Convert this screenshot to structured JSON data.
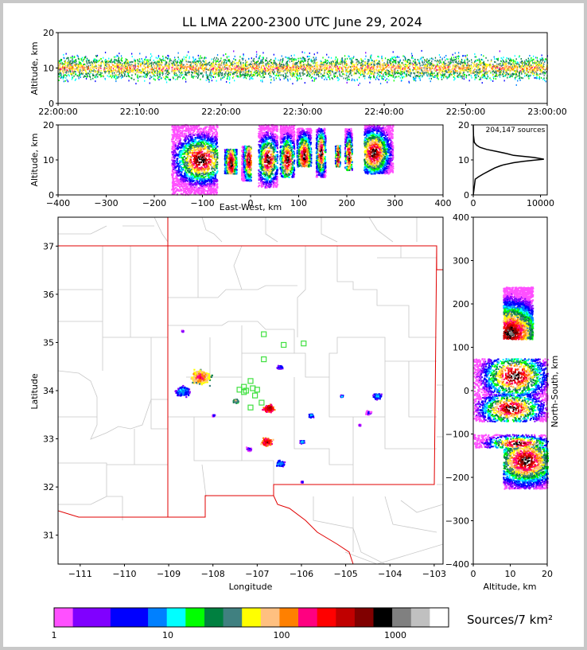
{
  "title": "LL LMA 2200-2300 UTC June 29, 2024",
  "chart_data": [
    {
      "panel": "altitude-time",
      "type": "scatter",
      "xlabel": "",
      "ylabel": "Altitude, km",
      "xticks": [
        "22:00:00",
        "22:10:00",
        "22:20:00",
        "22:30:00",
        "22:40:00",
        "22:50:00",
        "23:00:00"
      ],
      "yticks": [
        "0",
        "10",
        "20"
      ],
      "xlim": [
        "22:00:00",
        "23:00:00"
      ],
      "ylim": [
        0,
        20
      ],
      "description_bands": [
        {
          "altitude_km": [
            2,
            19
          ],
          "density": "low"
        },
        {
          "altitude_km": [
            6,
            14
          ],
          "density": "high"
        },
        {
          "altitude_km": [
            8,
            12
          ],
          "density": "highest"
        }
      ]
    },
    {
      "panel": "altitude-eastwest",
      "type": "heatmap",
      "xlabel": "East-West, km",
      "ylabel": "Altitude, km",
      "xticks": [
        "−400",
        "−300",
        "−200",
        "−100",
        "0",
        "100",
        "200",
        "300",
        "400"
      ],
      "yticks": [
        "0",
        "10",
        "20"
      ],
      "xlim": [
        -400,
        400
      ],
      "ylim": [
        0,
        20
      ],
      "clusters": [
        {
          "x_km": [
            -165,
            -70
          ],
          "alt_km": [
            0,
            20
          ],
          "peak_x": -105,
          "peak_alt": 10
        },
        {
          "x_km": [
            -55,
            -30
          ],
          "alt_km": [
            6,
            13
          ],
          "peak_x": -42,
          "peak_alt": 9
        },
        {
          "x_km": [
            -20,
            0
          ],
          "alt_km": [
            4,
            14
          ],
          "peak_x": -5,
          "peak_alt": 10
        },
        {
          "x_km": [
            15,
            55
          ],
          "alt_km": [
            2,
            20
          ],
          "peak_x": 35,
          "peak_alt": 10
        },
        {
          "x_km": [
            60,
            90
          ],
          "alt_km": [
            5,
            20
          ],
          "peak_x": 75,
          "peak_alt": 10
        },
        {
          "x_km": [
            95,
            125
          ],
          "alt_km": [
            8,
            19
          ],
          "peak_x": 110,
          "peak_alt": 11
        },
        {
          "x_km": [
            135,
            155
          ],
          "alt_km": [
            5,
            19
          ],
          "peak_x": 145,
          "peak_alt": 12
        },
        {
          "x_km": [
            175,
            185
          ],
          "alt_km": [
            8,
            14
          ],
          "peak_x": 180,
          "peak_alt": 11
        },
        {
          "x_km": [
            195,
            210
          ],
          "alt_km": [
            7,
            19
          ],
          "peak_x": 203,
          "peak_alt": 11
        },
        {
          "x_km": [
            235,
            295
          ],
          "alt_km": [
            6,
            20
          ],
          "peak_x": 255,
          "peak_alt": 12
        }
      ]
    },
    {
      "panel": "altitude-histogram",
      "type": "line",
      "annotation": "204,147 sources",
      "xticks": [
        "0",
        "10000"
      ],
      "yticks": [
        "0",
        "10",
        "20"
      ],
      "xlim": [
        0,
        11000
      ],
      "ylim": [
        0,
        20
      ],
      "x": [
        0,
        300,
        800,
        1500,
        2500,
        3200,
        4000,
        4500,
        5000,
        6000,
        7500,
        9000,
        10500,
        9000,
        6000,
        5000,
        3500,
        2000,
        1000,
        500,
        150,
        30,
        0
      ],
      "y": [
        0,
        4.5,
        5.2,
        6,
        7,
        7.7,
        8.3,
        8.6,
        8.8,
        9.2,
        9.6,
        9.9,
        10.2,
        10.7,
        11.3,
        11.8,
        12.4,
        13,
        13.6,
        14.2,
        15,
        17,
        20
      ]
    },
    {
      "panel": "plan-view",
      "type": "heatmap",
      "xlabel": "Longitude",
      "ylabel": "Latitude",
      "xticks": [
        "−111",
        "−110",
        "−109",
        "−108",
        "−107",
        "−106",
        "−105",
        "−104",
        "−103"
      ],
      "yticks": [
        "31",
        "32",
        "33",
        "34",
        "35",
        "36",
        "37"
      ],
      "xlim": [
        -111.5,
        -102.8
      ],
      "ylim": [
        30.4,
        37.6
      ],
      "clusters": [
        {
          "lon": -108.3,
          "lat": 34.3,
          "size": 0.35,
          "peak": "red"
        },
        {
          "lon": -108.7,
          "lat": 34.0,
          "size": 0.25,
          "peak": "green"
        },
        {
          "lon": -106.75,
          "lat": 33.65,
          "size": 0.2,
          "peak": "black"
        },
        {
          "lon": -106.8,
          "lat": 32.95,
          "size": 0.2,
          "peak": "darkred"
        },
        {
          "lon": -106.5,
          "lat": 34.5,
          "size": 0.1,
          "peak": "cyan"
        },
        {
          "lon": -104.3,
          "lat": 33.9,
          "size": 0.15,
          "peak": "green"
        },
        {
          "lon": -104.5,
          "lat": 33.55,
          "size": 0.1,
          "peak": "blue"
        },
        {
          "lon": -105.8,
          "lat": 33.5,
          "size": 0.1,
          "peak": "green"
        },
        {
          "lon": -107.5,
          "lat": 33.8,
          "size": 0.1,
          "peak": "orange"
        },
        {
          "lon": -106.5,
          "lat": 32.5,
          "size": 0.15,
          "peak": "green"
        },
        {
          "lon": -107.2,
          "lat": 32.8,
          "size": 0.1,
          "peak": "blue"
        },
        {
          "lon": -106.0,
          "lat": 32.95,
          "size": 0.08,
          "peak": "green"
        },
        {
          "lon": -108.0,
          "lat": 33.5,
          "size": 0.05,
          "peak": "blue"
        },
        {
          "lon": -108.7,
          "lat": 35.25,
          "size": 0.04,
          "peak": "blue"
        },
        {
          "lon": -105.1,
          "lat": 33.9,
          "size": 0.05,
          "peak": "green"
        },
        {
          "lon": -104.7,
          "lat": 33.3,
          "size": 0.04,
          "peak": "blue"
        },
        {
          "lon": -106.0,
          "lat": 32.12,
          "size": 0.04,
          "peak": "blue"
        }
      ],
      "stations": [
        {
          "lon": -106.85,
          "lat": 35.17
        },
        {
          "lon": -106.4,
          "lat": 34.95
        },
        {
          "lon": -105.95,
          "lat": 34.98
        },
        {
          "lon": -106.85,
          "lat": 34.65
        },
        {
          "lon": -107.15,
          "lat": 34.2
        },
        {
          "lon": -107.3,
          "lat": 34.08
        },
        {
          "lon": -107.4,
          "lat": 34.02
        },
        {
          "lon": -107.25,
          "lat": 34.0
        },
        {
          "lon": -107.1,
          "lat": 34.05
        },
        {
          "lon": -107.0,
          "lat": 34.02
        },
        {
          "lon": -107.15,
          "lat": 33.65
        },
        {
          "lon": -106.9,
          "lat": 33.75
        },
        {
          "lon": -107.3,
          "lat": 33.97
        },
        {
          "lon": -107.05,
          "lat": 33.9
        }
      ]
    },
    {
      "panel": "northsouth-altitude",
      "type": "heatmap",
      "xlabel": "Altitude, km",
      "ylabel": "North-South, km",
      "xticks": [
        "0",
        "10",
        "20"
      ],
      "yticks": [
        "−400",
        "−300",
        "−200",
        "−100",
        "0",
        "100",
        "200",
        "300",
        "400"
      ],
      "xlim": [
        0,
        20
      ],
      "ylim": [
        -400,
        400
      ],
      "clusters": [
        {
          "ns_km": [
            -10,
            75
          ],
          "alt_km": [
            0,
            20
          ],
          "peak_ns": 35,
          "peak_alt": 11
        },
        {
          "ns_km": [
            -70,
            -10
          ],
          "alt_km": [
            0,
            20
          ],
          "peak_ns": -40,
          "peak_alt": 10
        },
        {
          "ns_km": [
            -130,
            -100
          ],
          "alt_km": [
            0,
            20
          ],
          "peak_ns": -120,
          "peak_alt": 12
        },
        {
          "ns_km": [
            -225,
            -130
          ],
          "alt_km": [
            8,
            20
          ],
          "peak_ns": -160,
          "peak_alt": 14
        },
        {
          "ns_km": [
            120,
            240
          ],
          "alt_km": [
            8,
            16
          ],
          "peak_ns": 135,
          "peak_alt": 10
        }
      ]
    }
  ],
  "colorbar": {
    "unit": "Sources/7 km²",
    "ticks": [
      "1",
      "10",
      "100",
      "1000"
    ],
    "colors": [
      "#ff50ff",
      "#8000ff",
      "#8000ff",
      "#0000ff",
      "#0000ff",
      "#0080ff",
      "#00ffff",
      "#00ff00",
      "#008040",
      "#408080",
      "#ffff00",
      "#ffc080",
      "#ff8000",
      "#ff0080",
      "#ff0000",
      "#c00000",
      "#800000",
      "#000000",
      "#808080",
      "#c0c0c0",
      "#ffffff"
    ]
  }
}
